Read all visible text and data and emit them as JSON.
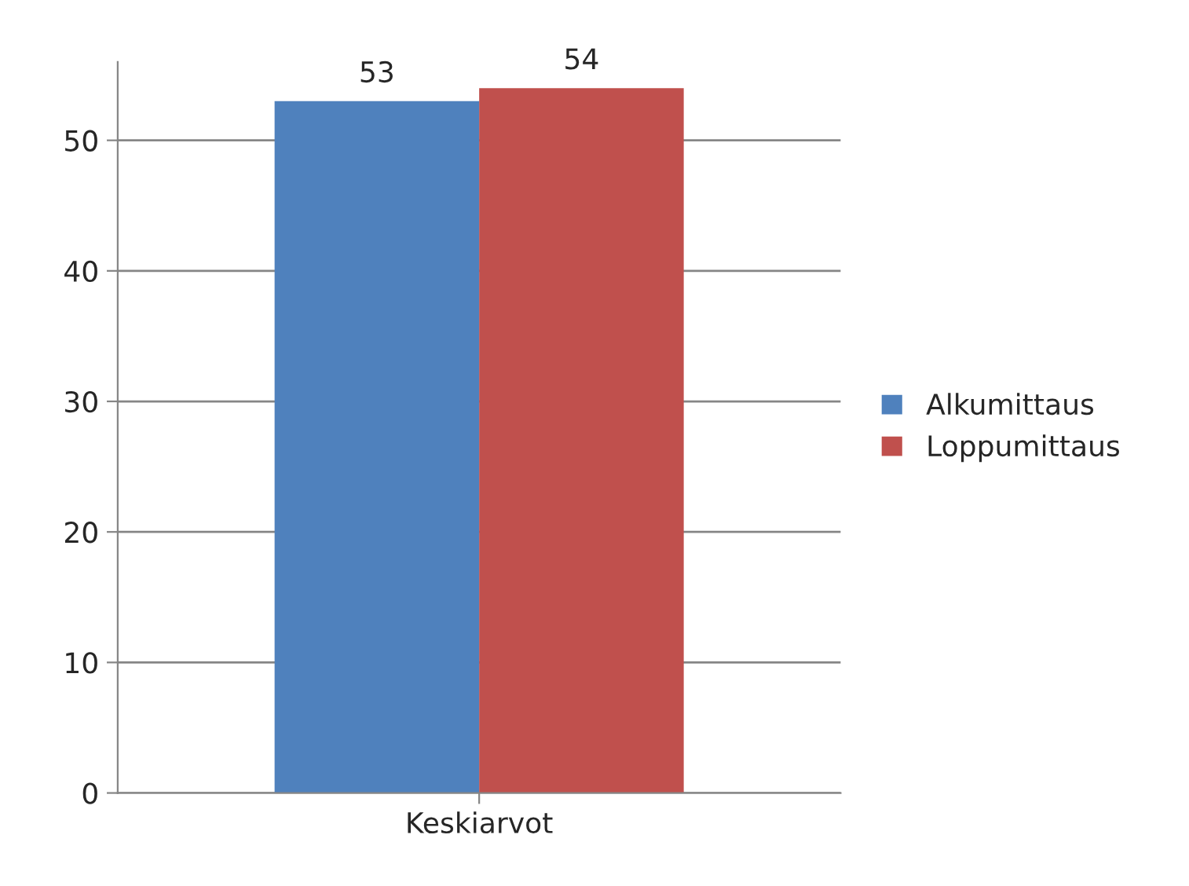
{
  "chart_data": {
    "type": "bar",
    "categories": [
      "Keskiarvot"
    ],
    "series": [
      {
        "name": "Alkumittaus",
        "color": "#4f81bd",
        "values": [
          53
        ]
      },
      {
        "name": "Loppumittaus",
        "color": "#c0504d",
        "values": [
          54
        ]
      }
    ],
    "ylim": [
      0,
      56
    ],
    "yticks": [
      0,
      10,
      20,
      30,
      40,
      50
    ],
    "grid": "y",
    "legend": "right",
    "data_labels": true
  }
}
